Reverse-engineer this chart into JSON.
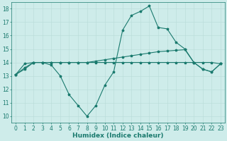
{
  "xlabel": "Humidex (Indice chaleur)",
  "bg_color": "#ceecea",
  "line_color": "#1a7a6e",
  "grid_color": "#b8dbd8",
  "xlim": [
    -0.5,
    23.5
  ],
  "ylim": [
    9.5,
    18.5
  ],
  "yticks": [
    10,
    11,
    12,
    13,
    14,
    15,
    16,
    17,
    18
  ],
  "xticks": [
    0,
    1,
    2,
    3,
    4,
    5,
    6,
    7,
    8,
    9,
    10,
    11,
    12,
    13,
    14,
    15,
    16,
    17,
    18,
    19,
    20,
    21,
    22,
    23
  ],
  "curve1_x": [
    0,
    1,
    2,
    3,
    4,
    5,
    6,
    7,
    8,
    9,
    10,
    11,
    12,
    13,
    14,
    15,
    16,
    17,
    18,
    19,
    20,
    21,
    22,
    23
  ],
  "curve1_y": [
    13.1,
    13.5,
    14.0,
    14.0,
    13.8,
    13.0,
    11.6,
    10.8,
    10.0,
    10.8,
    12.3,
    13.3,
    16.4,
    17.5,
    17.8,
    18.2,
    16.6,
    16.5,
    15.5,
    15.0,
    14.0,
    13.5,
    13.3,
    13.9
  ],
  "curve2_x": [
    0,
    1,
    2,
    3,
    4,
    5,
    6,
    7,
    8,
    9,
    10,
    11,
    12,
    13,
    14,
    15,
    16,
    17,
    18,
    19,
    20,
    21,
    22,
    23
  ],
  "curve2_y": [
    13.1,
    13.9,
    14.0,
    14.0,
    14.0,
    14.0,
    14.0,
    14.0,
    14.0,
    14.0,
    14.0,
    14.0,
    14.0,
    14.0,
    14.0,
    14.0,
    14.0,
    14.0,
    14.0,
    14.0,
    14.0,
    14.0,
    14.0,
    13.9
  ],
  "curve3_x": [
    0,
    1,
    2,
    3,
    4,
    5,
    6,
    7,
    8,
    9,
    10,
    11,
    12,
    13,
    14,
    15,
    16,
    17,
    18,
    19,
    20,
    21,
    22,
    23
  ],
  "curve3_y": [
    13.1,
    13.6,
    14.0,
    14.0,
    14.0,
    14.0,
    14.0,
    14.0,
    14.0,
    14.1,
    14.2,
    14.3,
    14.4,
    14.5,
    14.6,
    14.7,
    14.8,
    14.85,
    14.9,
    14.95,
    14.0,
    13.5,
    13.3,
    13.9
  ],
  "font_size_label": 6.5,
  "font_size_tick": 5.5,
  "marker": "*",
  "marker_size": 2.5,
  "linewidth": 0.8
}
